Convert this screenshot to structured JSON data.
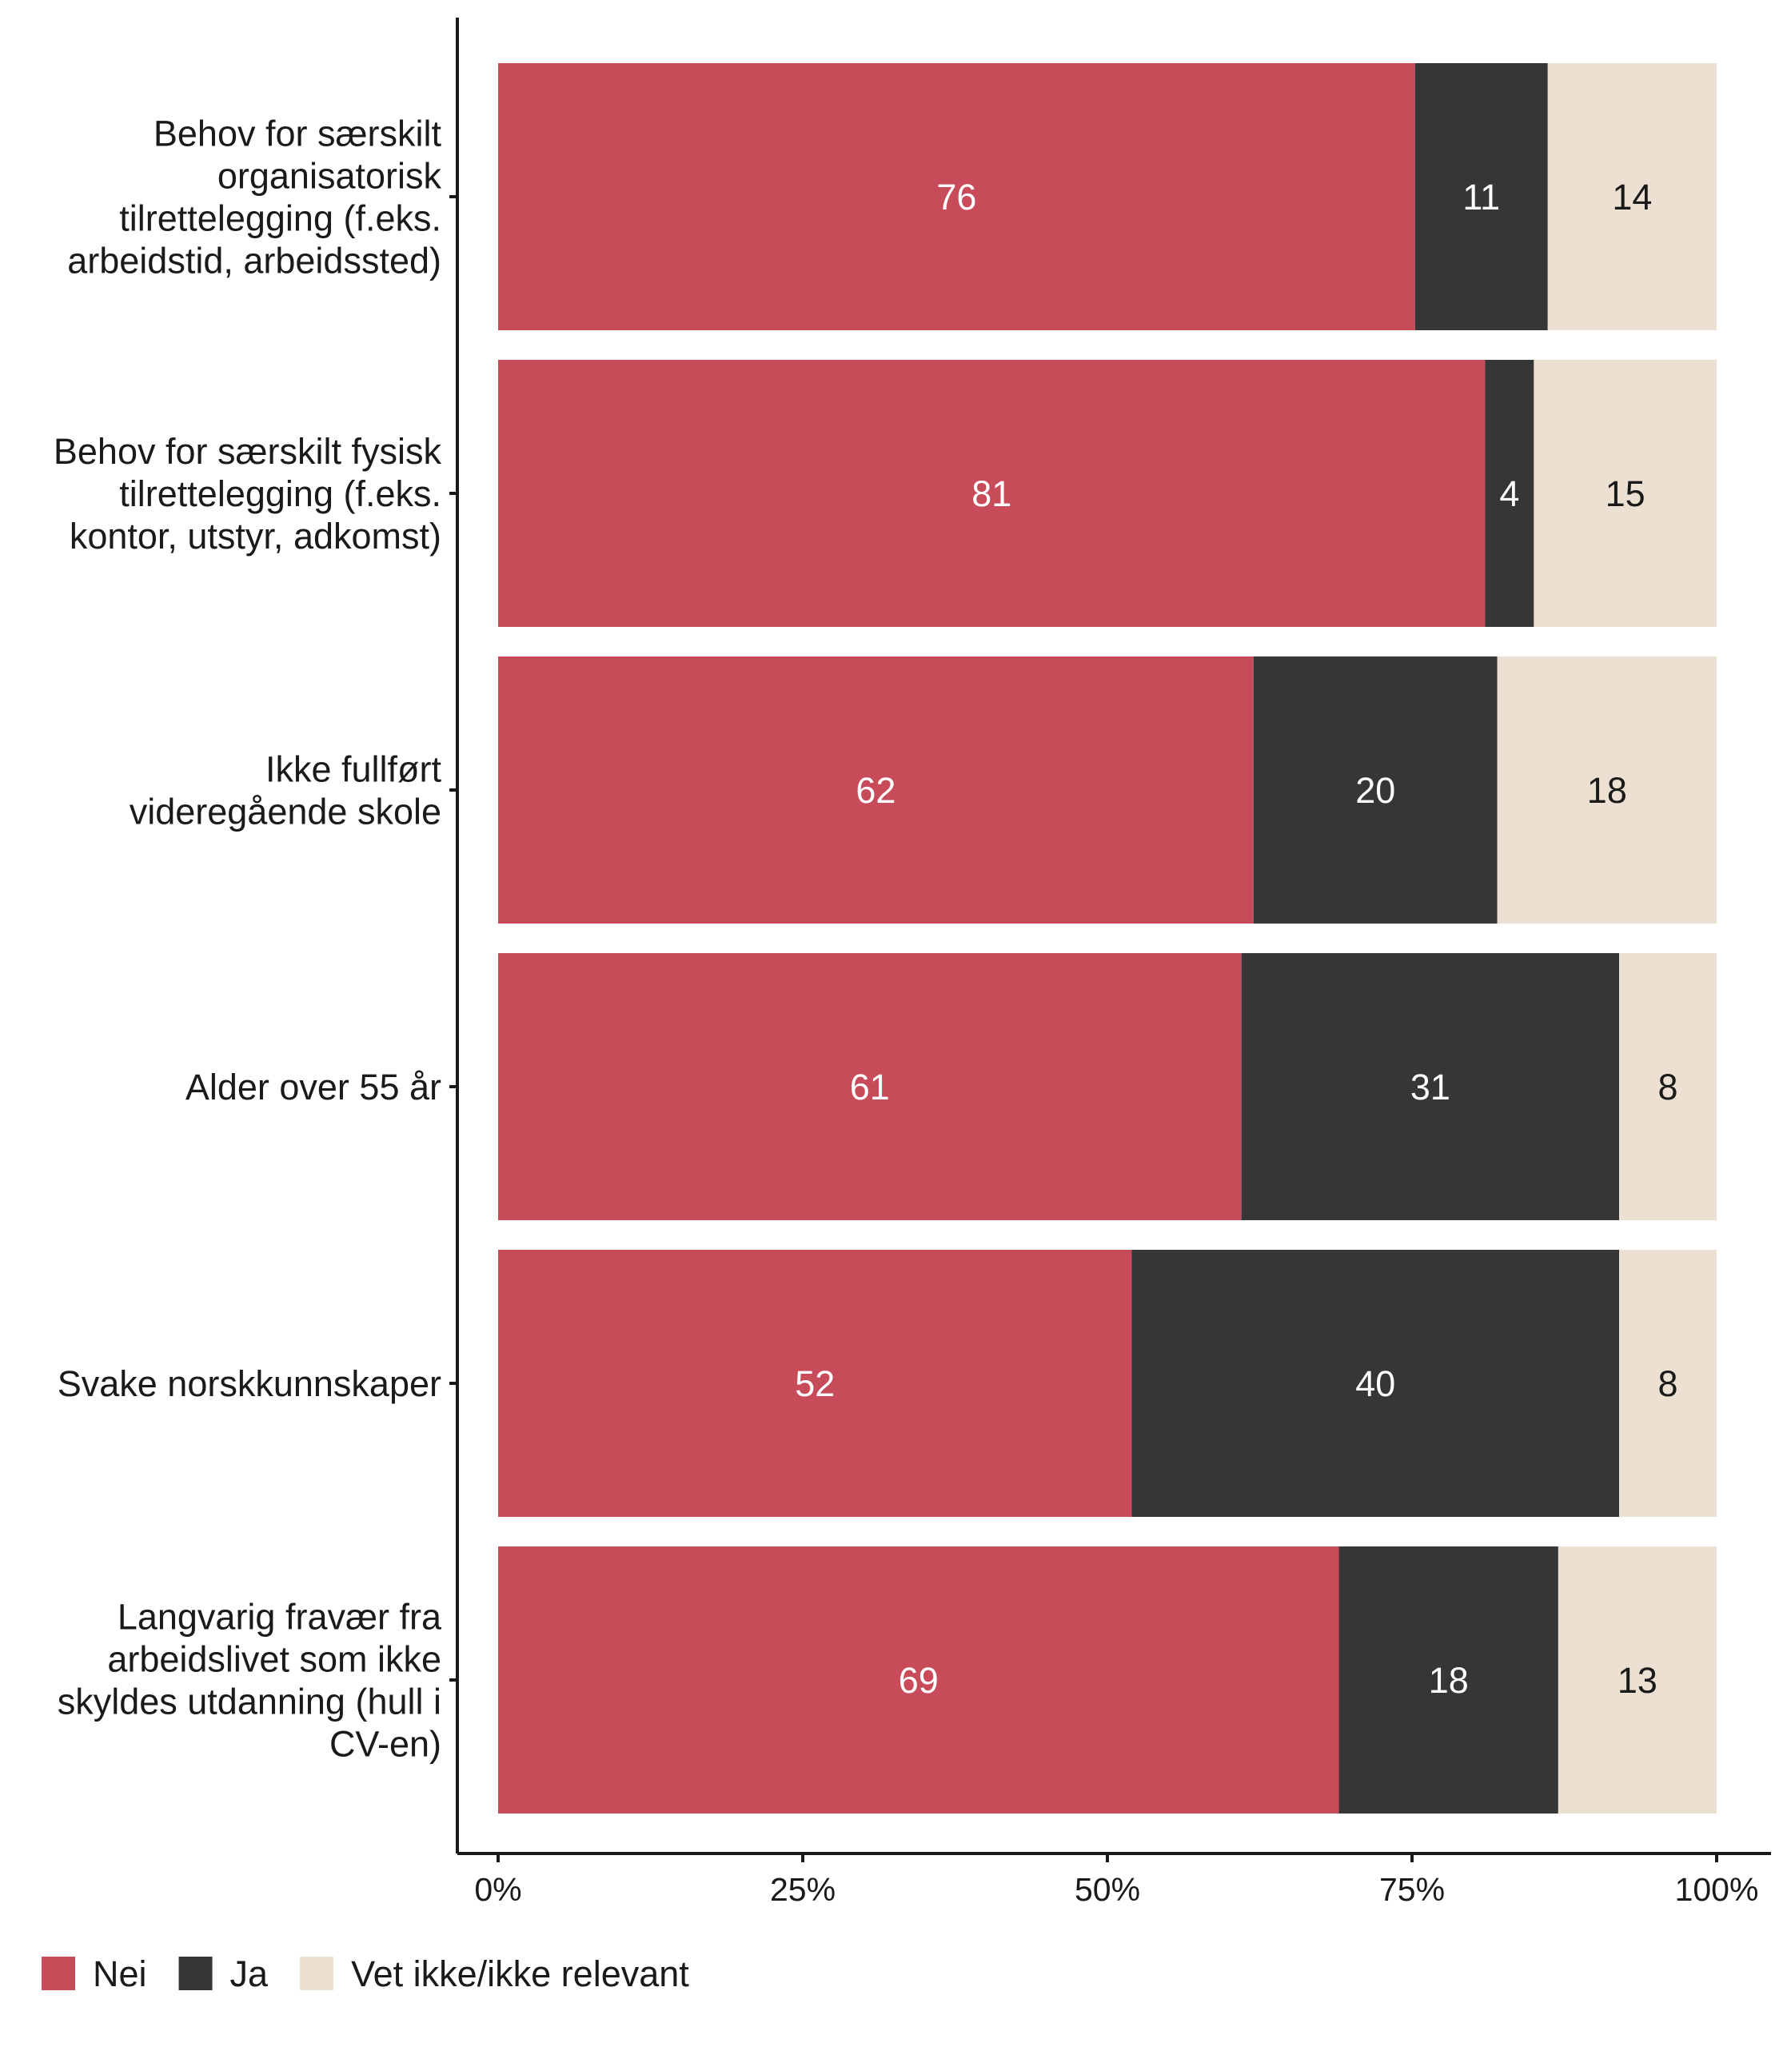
{
  "chart_data": {
    "type": "bar",
    "orientation": "horizontal",
    "stacked": true,
    "categories": [
      [
        "Behov for særskilt",
        "organisatorisk",
        "tilrettelegging (f.eks.",
        "arbeidstid, arbeidssted)"
      ],
      [
        "Behov for særskilt fysisk",
        "tilrettelegging (f.eks.",
        "kontor, utstyr, adkomst)"
      ],
      [
        "Ikke fullført",
        "videregående skole"
      ],
      [
        "Alder over 55 år"
      ],
      [
        "Svake norskkunnskaper"
      ],
      [
        "Langvarig fravær fra",
        "arbeidslivet som ikke",
        "skyldes utdanning (hull i",
        "CV-en)"
      ]
    ],
    "series": [
      {
        "name": "Nei",
        "color": "#C84B5A",
        "label_color": "#FFFFFF",
        "values": [
          76,
          81,
          62,
          61,
          52,
          69
        ]
      },
      {
        "name": "Ja",
        "color": "#363636",
        "label_color": "#FFFFFF",
        "values": [
          11,
          4,
          20,
          31,
          40,
          18
        ]
      },
      {
        "name": "Vet ikke/ikke relevant",
        "color": "#EBE0D1",
        "label_color": "#1a1a1a",
        "values": [
          14,
          15,
          18,
          8,
          8,
          13
        ]
      }
    ],
    "x_ticks": [
      "0%",
      "25%",
      "50%",
      "75%",
      "100%"
    ],
    "xlim": [
      0,
      100
    ],
    "grid": false,
    "legend_position": "bottom-left"
  }
}
